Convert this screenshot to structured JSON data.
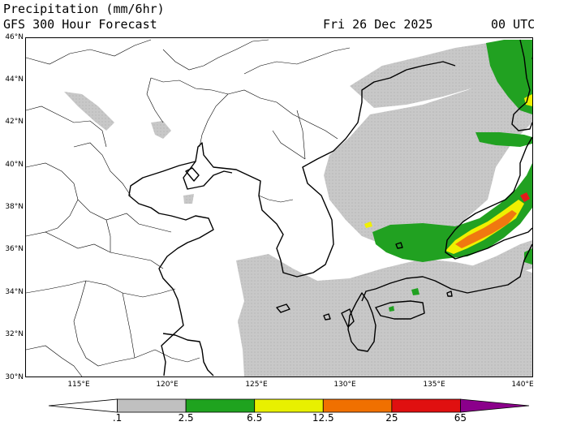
{
  "header": {
    "variable": "Precipitation (mm/6hr)",
    "model": "GFS 300 Hour Forecast",
    "date": "Fri 26 Dec 2025",
    "time": "00 UTC"
  },
  "axes": {
    "lat_labels": [
      "46°N",
      "44°N",
      "42°N",
      "40°N",
      "38°N",
      "36°N",
      "34°N",
      "32°N",
      "30°N"
    ],
    "lon_labels": [
      "115°E",
      "120°E",
      "125°E",
      "130°E",
      "135°E",
      "140°E"
    ]
  },
  "colorbar": {
    "thresholds": [
      ".1",
      "2.5",
      "6.5",
      "12.5",
      "25",
      "65"
    ],
    "colors": [
      "#ffffff",
      "#c0c0c0",
      "#1fa31f",
      "#e8f000",
      "#f07000",
      "#e01010",
      "#8b008b"
    ]
  },
  "map_colors": {
    "light": "#c8c8c8",
    "moderate": "#21a121",
    "heavy": "#f0f000",
    "very_heavy": "#f07810",
    "extreme": "#e51a1a"
  }
}
